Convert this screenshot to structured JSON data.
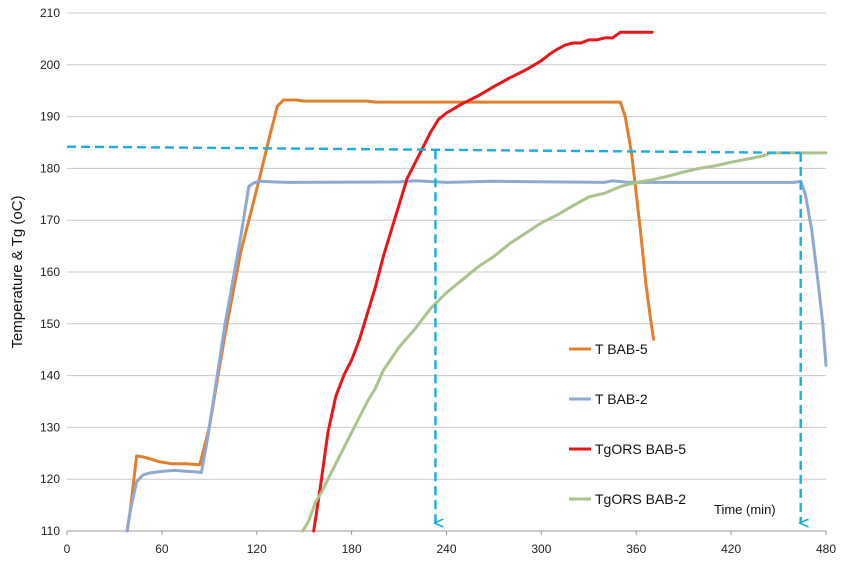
{
  "chart_data": {
    "type": "line",
    "ylabel": "Temperature & Tg (oC)",
    "xlabel": "",
    "x_annotation": "Time (min)",
    "xlim": [
      0,
      480
    ],
    "ylim": [
      110,
      210
    ],
    "xticks": [
      0,
      60,
      120,
      180,
      240,
      300,
      360,
      420,
      480
    ],
    "yticks": [
      110,
      120,
      130,
      140,
      150,
      160,
      170,
      180,
      190,
      200,
      210
    ],
    "grid": "horizontal",
    "legend_position": "inside-bottom-right",
    "series": [
      {
        "name": "T BAB-5",
        "color": "#E07F2E",
        "points": [
          [
            38,
            110
          ],
          [
            40,
            114
          ],
          [
            44,
            124.5
          ],
          [
            48,
            124.3
          ],
          [
            52,
            124
          ],
          [
            58,
            123.4
          ],
          [
            66,
            123
          ],
          [
            75,
            123
          ],
          [
            84,
            122.8
          ],
          [
            90,
            130
          ],
          [
            100,
            148
          ],
          [
            110,
            164
          ],
          [
            120,
            176
          ],
          [
            128,
            186
          ],
          [
            133,
            192
          ],
          [
            137,
            193.2
          ],
          [
            145,
            193.2
          ],
          [
            150,
            193
          ],
          [
            190,
            193
          ],
          [
            195,
            192.8
          ],
          [
            350,
            192.8
          ],
          [
            353,
            190
          ],
          [
            357,
            183
          ],
          [
            360,
            175
          ],
          [
            363,
            167
          ],
          [
            366,
            158
          ],
          [
            369,
            151
          ],
          [
            371,
            147
          ]
        ]
      },
      {
        "name": "T BAB-2",
        "color": "#8EA8D2",
        "points": [
          [
            38,
            110
          ],
          [
            40,
            114
          ],
          [
            44,
            119.5
          ],
          [
            48,
            120.8
          ],
          [
            52,
            121.2
          ],
          [
            60,
            121.5
          ],
          [
            68,
            121.7
          ],
          [
            76,
            121.5
          ],
          [
            82,
            121.4
          ],
          [
            85,
            121.3
          ],
          [
            89,
            128
          ],
          [
            100,
            150
          ],
          [
            110,
            167
          ],
          [
            115,
            176.5
          ],
          [
            118,
            177.2
          ],
          [
            122,
            177.5
          ],
          [
            130,
            177.4
          ],
          [
            140,
            177.3
          ],
          [
            210,
            177.4
          ],
          [
            220,
            177.6
          ],
          [
            240,
            177.3
          ],
          [
            270,
            177.5
          ],
          [
            340,
            177.3
          ],
          [
            345,
            177.6
          ],
          [
            355,
            177.3
          ],
          [
            460,
            177.3
          ],
          [
            464,
            177.5
          ],
          [
            467,
            175
          ],
          [
            471,
            168
          ],
          [
            475,
            158
          ],
          [
            478,
            150
          ],
          [
            480,
            142
          ]
        ]
      },
      {
        "name": "TgORS BAB-5",
        "color": "#E8161B",
        "points": [
          [
            156,
            110
          ],
          [
            160,
            118
          ],
          [
            165,
            129
          ],
          [
            170,
            136
          ],
          [
            175,
            140
          ],
          [
            180,
            143
          ],
          [
            185,
            147
          ],
          [
            190,
            152
          ],
          [
            195,
            157
          ],
          [
            200,
            163
          ],
          [
            205,
            168
          ],
          [
            210,
            173
          ],
          [
            215,
            178
          ],
          [
            220,
            181
          ],
          [
            225,
            184
          ],
          [
            230,
            187
          ],
          [
            235,
            189.5
          ],
          [
            240,
            190.7
          ],
          [
            250,
            192.5
          ],
          [
            260,
            194
          ],
          [
            270,
            195.8
          ],
          [
            280,
            197.5
          ],
          [
            290,
            199
          ],
          [
            300,
            200.8
          ],
          [
            305,
            202
          ],
          [
            310,
            203
          ],
          [
            315,
            203.8
          ],
          [
            320,
            204.2
          ],
          [
            325,
            204.2
          ],
          [
            330,
            204.8
          ],
          [
            335,
            204.8
          ],
          [
            340,
            205.2
          ],
          [
            345,
            205.2
          ],
          [
            350,
            206.3
          ],
          [
            355,
            206.3
          ],
          [
            360,
            206.3
          ],
          [
            370,
            206.3
          ]
        ]
      },
      {
        "name": "TgORS BAB-2",
        "color": "#A9C48A",
        "points": [
          [
            149,
            110
          ],
          [
            153,
            112
          ],
          [
            157,
            115.5
          ],
          [
            161,
            117.5
          ],
          [
            165,
            120
          ],
          [
            170,
            123
          ],
          [
            175,
            126
          ],
          [
            180,
            129
          ],
          [
            185,
            132
          ],
          [
            190,
            135
          ],
          [
            195,
            137.5
          ],
          [
            200,
            141
          ],
          [
            210,
            145.5
          ],
          [
            220,
            149
          ],
          [
            230,
            153
          ],
          [
            240,
            156
          ],
          [
            250,
            158.5
          ],
          [
            260,
            161
          ],
          [
            270,
            163
          ],
          [
            280,
            165.5
          ],
          [
            290,
            167.5
          ],
          [
            300,
            169.5
          ],
          [
            310,
            171
          ],
          [
            320,
            172.8
          ],
          [
            330,
            174.5
          ],
          [
            340,
            175.2
          ],
          [
            350,
            176.5
          ],
          [
            360,
            177.3
          ],
          [
            370,
            177.8
          ],
          [
            380,
            178.5
          ],
          [
            390,
            179.3
          ],
          [
            400,
            180
          ],
          [
            410,
            180.5
          ],
          [
            420,
            181.2
          ],
          [
            430,
            181.8
          ],
          [
            440,
            182.4
          ],
          [
            445,
            183
          ],
          [
            460,
            183
          ],
          [
            480,
            183
          ]
        ]
      }
    ],
    "reference_lines": [
      {
        "points": [
          [
            0,
            184.2
          ],
          [
            464,
            183
          ]
        ],
        "color": "#1AAEE0",
        "style": "dashed"
      },
      {
        "points": [
          [
            233,
            183.5
          ],
          [
            233,
            110
          ]
        ],
        "color": "#1AAEE0",
        "style": "dashed-arrow"
      },
      {
        "points": [
          [
            464,
            183
          ],
          [
            464,
            110
          ]
        ],
        "color": "#1AAEE0",
        "style": "dashed-arrow"
      }
    ]
  }
}
